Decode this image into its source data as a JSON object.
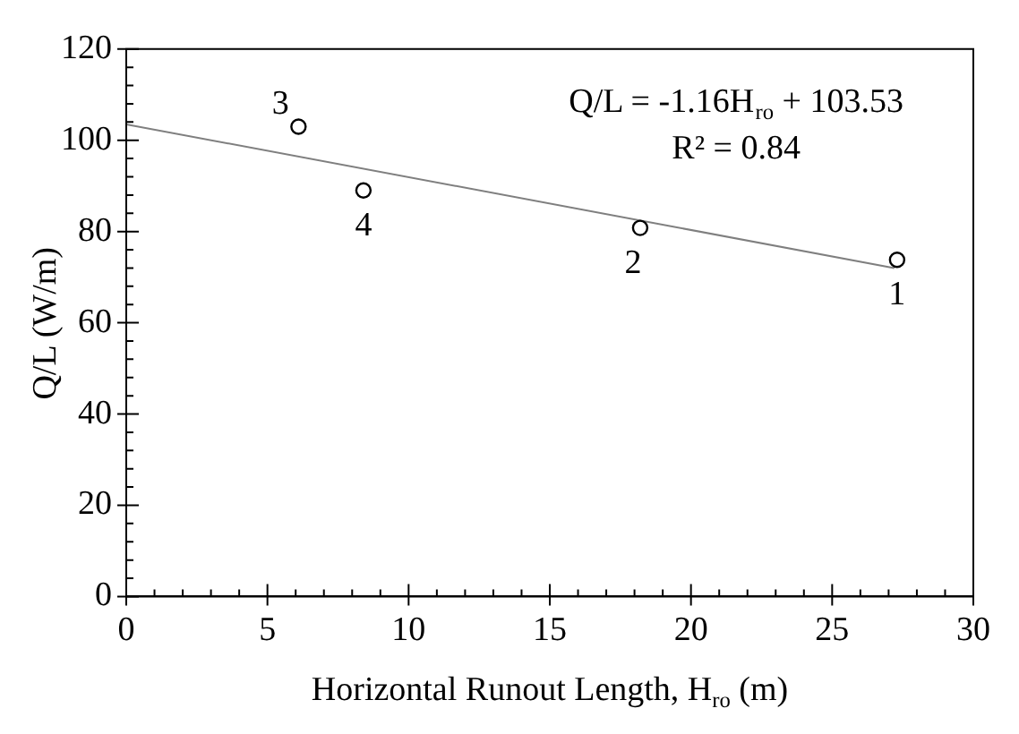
{
  "chart_data": {
    "type": "scatter",
    "xlabel": "Horizontal Runout Length, H$_{ro}$ (m)",
    "ylabel": "Q/L (W/m)",
    "xlim": [
      0,
      30
    ],
    "xticks": [
      0,
      5,
      10,
      15,
      20,
      25,
      30
    ],
    "ylim": [
      0,
      120
    ],
    "yticks": [
      0,
      20,
      40,
      60,
      80,
      100,
      120
    ],
    "grid": false,
    "legend": false,
    "marker": "circle",
    "series": [
      {
        "color": "#000000",
        "x": [
          27.3,
          18.2,
          6.1,
          8.4
        ],
        "values": [
          73.8,
          80.8,
          103,
          89
        ]
      },
      {
        "type": "line",
        "color": "#7f7f7f",
        "line_style": "solid",
        "marker": "none",
        "x": [
          0,
          27.2
        ],
        "values": [
          103.5,
          72
        ]
      }
    ],
    "annotations": [
      {
        "text": "1",
        "x": 27.3,
        "y": 73.8
      },
      {
        "text": "2",
        "x": 18.2,
        "y": 80.8
      },
      {
        "text": "3",
        "x": 6.1,
        "y": 103
      },
      {
        "text": "4",
        "x": 8.4,
        "y": 89
      },
      "Q/L = -1.16H$_{ro}$ + 103.53",
      "R² = 0.84"
    ]
  }
}
